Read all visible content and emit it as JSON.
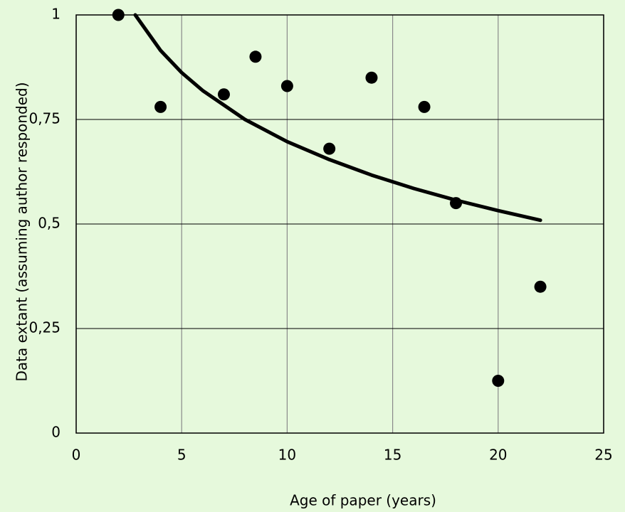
{
  "chart_data": {
    "type": "scatter",
    "xlabel": "Age of paper (years)",
    "ylabel": "Data extant (assuming author responded)",
    "xlim": [
      0,
      25
    ],
    "ylim": [
      0,
      1
    ],
    "xticks": [
      0,
      5,
      10,
      15,
      20,
      25
    ],
    "yticks": [
      0,
      {
        "value": 0.25,
        "label": "0,25"
      },
      {
        "value": 0.5,
        "label": "0,5"
      },
      {
        "value": 0.75,
        "label": "0,75"
      },
      1
    ],
    "grid": true,
    "series": [
      {
        "mode": "markers",
        "color": "#000000",
        "x": [
          2,
          4,
          7,
          8.5,
          10,
          12,
          14,
          16.5,
          18,
          20,
          22
        ],
        "values": [
          1,
          0.78,
          0.81,
          0.9,
          0.83,
          0.68,
          0.85,
          0.78,
          0.55,
          0.125,
          0.35
        ]
      },
      {
        "mode": "line",
        "color": "#000000",
        "x": [
          2.8,
          4,
          5,
          6,
          8,
          10,
          12,
          14,
          16,
          18,
          20,
          22
        ],
        "values": [
          1,
          0.915,
          0.862,
          0.819,
          0.75,
          0.697,
          0.654,
          0.617,
          0.585,
          0.557,
          0.532,
          0.509
        ]
      }
    ]
  }
}
